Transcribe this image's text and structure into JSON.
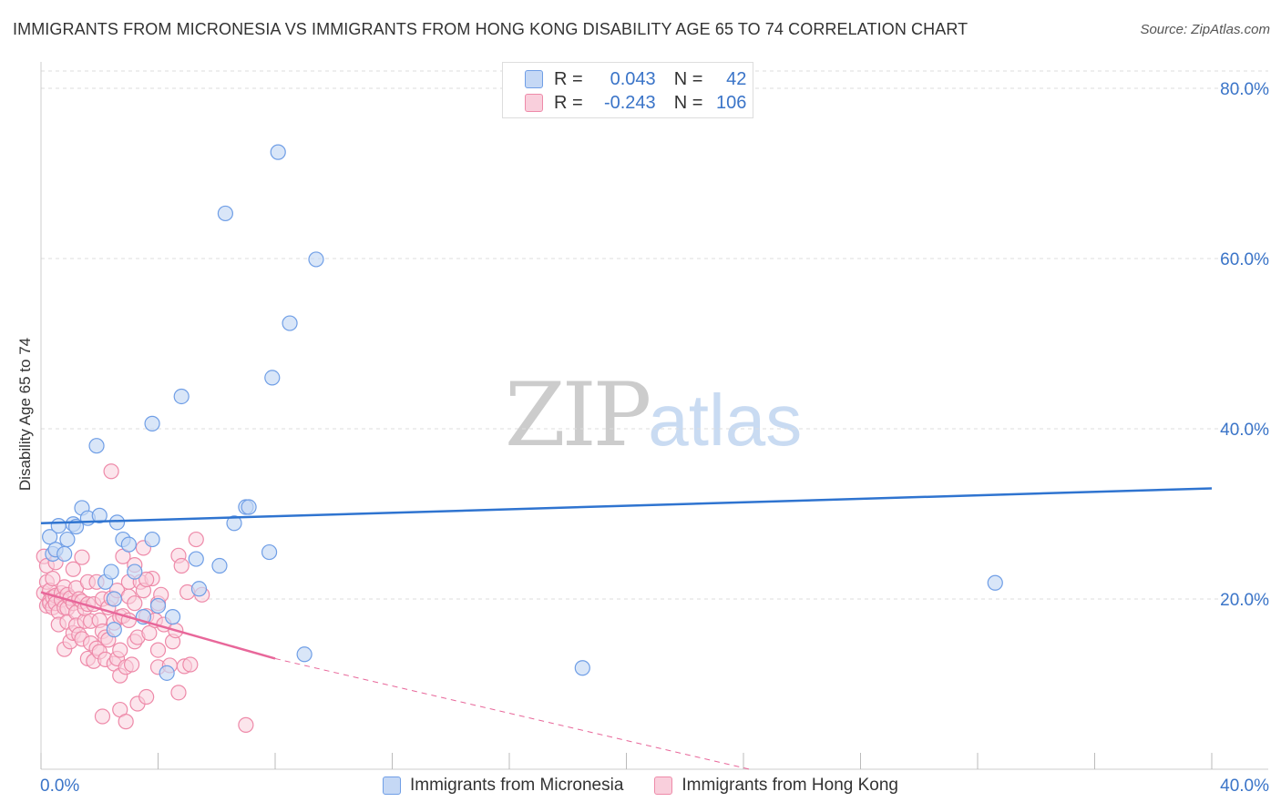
{
  "title": "IMMIGRANTS FROM MICRONESIA VS IMMIGRANTS FROM HONG KONG DISABILITY AGE 65 TO 74 CORRELATION CHART",
  "source": "Source: ZipAtlas.com",
  "watermark": {
    "zip": "ZIP",
    "atlas": "atlas"
  },
  "stats": [
    {
      "r_label": "R =",
      "r_value": "0.043",
      "n_label": "N =",
      "n_value": "42"
    },
    {
      "r_label": "R =",
      "r_value": "-0.243",
      "n_label": "N =",
      "n_value": "106"
    }
  ],
  "colors": {
    "blue_fill": "#c5d8f5",
    "blue_stroke": "#6f9ee6",
    "blue_line": "#2f74d0",
    "pink_fill": "#f9cfdc",
    "pink_stroke": "#ee8aa9",
    "pink_line": "#e8679a",
    "axis_text": "#3a74c8",
    "grid": "#dddddd"
  },
  "chart_data": {
    "type": "scatter",
    "title": "IMMIGRANTS FROM MICRONESIA VS IMMIGRANTS FROM HONG KONG DISABILITY AGE 65 TO 74 CORRELATION CHART",
    "xlabel": "",
    "ylabel": "Disability Age 65 to 74",
    "xlim": [
      0,
      40
    ],
    "ylim": [
      0,
      80
    ],
    "x_tick_labels": [
      "0.0%",
      "40.0%"
    ],
    "y_ticks": [
      20,
      40,
      60,
      80
    ],
    "y_tick_labels": [
      "20.0%",
      "40.0%",
      "60.0%",
      "80.0%"
    ],
    "grid": true,
    "legend_position": "bottom",
    "series": [
      {
        "name": "Immigrants from Micronesia",
        "color": "#6f9ee6",
        "trend": {
          "x": [
            0,
            40
          ],
          "y": [
            28.9,
            33.0
          ]
        },
        "points": [
          [
            0.3,
            27.3
          ],
          [
            0.4,
            25.3
          ],
          [
            0.5,
            25.8
          ],
          [
            0.6,
            28.6
          ],
          [
            0.8,
            25.3
          ],
          [
            0.9,
            27.0
          ],
          [
            1.1,
            28.8
          ],
          [
            1.2,
            28.5
          ],
          [
            1.4,
            30.7
          ],
          [
            1.6,
            29.5
          ],
          [
            1.9,
            38.0
          ],
          [
            2.0,
            29.8
          ],
          [
            2.2,
            22.0
          ],
          [
            2.4,
            23.2
          ],
          [
            2.5,
            20.0
          ],
          [
            2.5,
            16.4
          ],
          [
            2.6,
            29.0
          ],
          [
            2.8,
            27.0
          ],
          [
            3.0,
            26.4
          ],
          [
            3.2,
            23.2
          ],
          [
            3.5,
            17.9
          ],
          [
            3.8,
            40.6
          ],
          [
            3.8,
            27.0
          ],
          [
            4.0,
            19.2
          ],
          [
            4.3,
            11.3
          ],
          [
            4.5,
            17.9
          ],
          [
            4.8,
            43.8
          ],
          [
            5.3,
            24.7
          ],
          [
            5.4,
            21.2
          ],
          [
            6.1,
            23.9
          ],
          [
            6.3,
            65.3
          ],
          [
            6.6,
            28.9
          ],
          [
            7.0,
            30.8
          ],
          [
            7.1,
            30.8
          ],
          [
            7.8,
            25.5
          ],
          [
            7.9,
            46.0
          ],
          [
            8.1,
            72.5
          ],
          [
            8.5,
            52.4
          ],
          [
            9.0,
            13.5
          ],
          [
            9.4,
            59.9
          ],
          [
            18.5,
            11.9
          ],
          [
            32.6,
            21.9
          ]
        ]
      },
      {
        "name": "Immigrants from Hong Kong",
        "color": "#ee8aa9",
        "trend": {
          "x": [
            0,
            8.0
          ],
          "y": [
            20.8,
            13.0
          ]
        },
        "trend_extension": {
          "x": [
            8.0,
            24.2
          ],
          "y": [
            13.0,
            0
          ]
        },
        "points": [
          [
            0.1,
            25.0
          ],
          [
            0.1,
            20.7
          ],
          [
            0.2,
            23.9
          ],
          [
            0.2,
            22.0
          ],
          [
            0.2,
            19.2
          ],
          [
            0.3,
            21.0
          ],
          [
            0.3,
            19.8
          ],
          [
            0.3,
            19.5
          ],
          [
            0.4,
            22.4
          ],
          [
            0.4,
            20.2
          ],
          [
            0.4,
            19.0
          ],
          [
            0.5,
            24.3
          ],
          [
            0.5,
            20.4
          ],
          [
            0.5,
            19.5
          ],
          [
            0.6,
            18.5
          ],
          [
            0.6,
            17.0
          ],
          [
            0.7,
            20.7
          ],
          [
            0.7,
            19.9
          ],
          [
            0.8,
            21.4
          ],
          [
            0.8,
            19.0
          ],
          [
            0.8,
            14.1
          ],
          [
            0.9,
            20.5
          ],
          [
            0.9,
            18.9
          ],
          [
            0.9,
            17.3
          ],
          [
            1.0,
            20.1
          ],
          [
            1.0,
            15.0
          ],
          [
            1.1,
            23.5
          ],
          [
            1.1,
            19.5
          ],
          [
            1.1,
            16.0
          ],
          [
            1.2,
            21.3
          ],
          [
            1.2,
            18.4
          ],
          [
            1.2,
            16.9
          ],
          [
            1.3,
            20.0
          ],
          [
            1.3,
            15.8
          ],
          [
            1.4,
            24.9
          ],
          [
            1.4,
            19.7
          ],
          [
            1.4,
            15.3
          ],
          [
            1.5,
            17.4
          ],
          [
            1.5,
            18.9
          ],
          [
            1.6,
            22.0
          ],
          [
            1.6,
            19.4
          ],
          [
            1.6,
            13.0
          ],
          [
            1.7,
            17.4
          ],
          [
            1.7,
            14.8
          ],
          [
            1.8,
            19.4
          ],
          [
            1.8,
            12.7
          ],
          [
            1.9,
            22.0
          ],
          [
            1.9,
            14.2
          ],
          [
            2.0,
            17.5
          ],
          [
            2.0,
            13.8
          ],
          [
            2.1,
            20.0
          ],
          [
            2.1,
            16.2
          ],
          [
            2.1,
            6.2
          ],
          [
            2.2,
            15.5
          ],
          [
            2.2,
            12.9
          ],
          [
            2.3,
            19.0
          ],
          [
            2.3,
            15.2
          ],
          [
            2.4,
            20.1
          ],
          [
            2.4,
            35.0
          ],
          [
            2.5,
            17.2
          ],
          [
            2.5,
            12.4
          ],
          [
            2.6,
            13.0
          ],
          [
            2.6,
            21.0
          ],
          [
            2.7,
            17.9
          ],
          [
            2.7,
            14.0
          ],
          [
            2.7,
            11.0
          ],
          [
            2.7,
            7.0
          ],
          [
            2.8,
            25.0
          ],
          [
            2.8,
            18.0
          ],
          [
            2.9,
            12.0
          ],
          [
            2.9,
            5.6
          ],
          [
            3.0,
            22.0
          ],
          [
            3.0,
            20.3
          ],
          [
            3.0,
            17.5
          ],
          [
            3.1,
            12.3
          ],
          [
            3.2,
            24.0
          ],
          [
            3.2,
            19.5
          ],
          [
            3.2,
            15.0
          ],
          [
            3.3,
            15.5
          ],
          [
            3.3,
            7.7
          ],
          [
            3.4,
            22.0
          ],
          [
            3.5,
            21.0
          ],
          [
            3.5,
            26.0
          ],
          [
            3.6,
            18.0
          ],
          [
            3.6,
            8.5
          ],
          [
            3.7,
            16.0
          ],
          [
            3.8,
            22.4
          ],
          [
            3.9,
            17.5
          ],
          [
            4.0,
            12.0
          ],
          [
            4.0,
            14.0
          ],
          [
            4.0,
            19.5
          ],
          [
            4.1,
            20.5
          ],
          [
            4.2,
            17.0
          ],
          [
            4.4,
            12.2
          ],
          [
            4.5,
            15.0
          ],
          [
            4.6,
            16.3
          ],
          [
            4.7,
            9.0
          ],
          [
            4.7,
            25.1
          ],
          [
            4.8,
            23.9
          ],
          [
            4.9,
            12.1
          ],
          [
            5.0,
            20.8
          ],
          [
            5.1,
            12.3
          ],
          [
            5.3,
            27.0
          ],
          [
            5.5,
            20.5
          ],
          [
            7.0,
            5.2
          ],
          [
            3.6,
            22.3
          ]
        ]
      }
    ]
  }
}
